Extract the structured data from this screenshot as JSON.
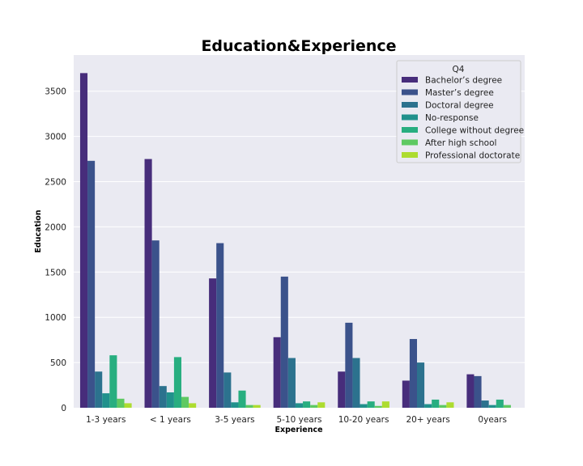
{
  "chart_data": {
    "type": "bar",
    "title": "Education&Experience",
    "xlabel": "Experience",
    "ylabel": "Education",
    "ylim": [
      0,
      3900
    ],
    "yticks": [
      0,
      500,
      1000,
      1500,
      2000,
      2500,
      3000,
      3500
    ],
    "grid": true,
    "legend": {
      "title": "Q4",
      "placement": "top-right"
    },
    "categories": [
      "1-3 years",
      "< 1 years",
      "3-5 years",
      "5-10 years",
      "10-20 years",
      "20+ years",
      "0years"
    ],
    "series": [
      {
        "name": "Bachelor’s degree",
        "color": "#472d7b",
        "values": [
          3700,
          2750,
          1430,
          780,
          400,
          300,
          370
        ]
      },
      {
        "name": "Master’s degree",
        "color": "#3b528b",
        "values": [
          2730,
          1850,
          1820,
          1450,
          940,
          760,
          350
        ]
      },
      {
        "name": "Doctoral degree",
        "color": "#2c728e",
        "values": [
          400,
          240,
          390,
          550,
          550,
          500,
          80
        ]
      },
      {
        "name": "No-response",
        "color": "#21918c",
        "values": [
          160,
          170,
          60,
          50,
          40,
          40,
          30
        ]
      },
      {
        "name": "College without degree",
        "color": "#28ae80",
        "values": [
          580,
          560,
          190,
          70,
          70,
          90,
          90
        ]
      },
      {
        "name": "After high school",
        "color": "#5ec962",
        "values": [
          100,
          120,
          30,
          30,
          20,
          30,
          30
        ]
      },
      {
        "name": "Professional doctorate",
        "color": "#addc30",
        "values": [
          50,
          50,
          30,
          60,
          70,
          60,
          0
        ]
      }
    ]
  }
}
